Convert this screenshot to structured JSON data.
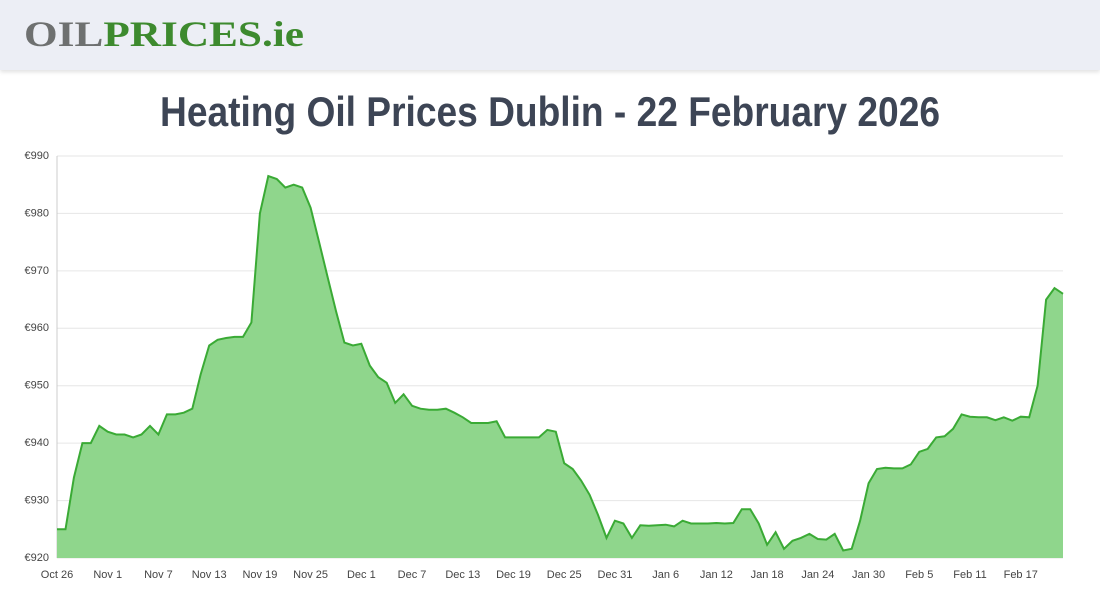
{
  "header": {
    "logo": {
      "part1": "OIL",
      "part2": "PRICES.ie"
    }
  },
  "chart_data": {
    "type": "area",
    "title": "Heating Oil Prices Dublin - 22 February 2026",
    "categories": [
      "Oct 26",
      null,
      null,
      null,
      null,
      null,
      "Nov 1",
      null,
      null,
      null,
      null,
      null,
      "Nov 7",
      null,
      null,
      null,
      null,
      null,
      "Nov 13",
      null,
      null,
      null,
      null,
      null,
      "Nov 19",
      null,
      null,
      null,
      null,
      null,
      "Nov 25",
      null,
      null,
      null,
      null,
      null,
      "Dec 1",
      null,
      null,
      null,
      null,
      null,
      "Dec 7",
      null,
      null,
      null,
      null,
      null,
      "Dec 13",
      null,
      null,
      null,
      null,
      null,
      "Dec 19",
      null,
      null,
      null,
      null,
      null,
      "Dec 25",
      null,
      null,
      null,
      null,
      null,
      "Dec 31",
      null,
      null,
      null,
      null,
      null,
      "Jan 6",
      null,
      null,
      null,
      null,
      null,
      "Jan 12",
      null,
      null,
      null,
      null,
      null,
      "Jan 18",
      null,
      null,
      null,
      null,
      null,
      "Jan 24",
      null,
      null,
      null,
      null,
      null,
      "Jan 30",
      null,
      null,
      null,
      null,
      null,
      "Feb 5",
      null,
      null,
      null,
      null,
      null,
      "Feb 11",
      null,
      null,
      null,
      null,
      null,
      "Feb 17",
      null,
      null,
      null,
      null,
      null
    ],
    "values": [
      925,
      925,
      934,
      940,
      940,
      943,
      942,
      941.5,
      941.5,
      941,
      941.5,
      943,
      941.5,
      945,
      945,
      945.3,
      946,
      952,
      957,
      958,
      958.3,
      958.5,
      958.5,
      961,
      980,
      986.5,
      986,
      984.5,
      985,
      984.5,
      981,
      975,
      969,
      963,
      957.5,
      957,
      957.3,
      953.5,
      951.5,
      950.5,
      947,
      948.5,
      946.5,
      946,
      945.8,
      945.8,
      946,
      945.3,
      944.5,
      943.5,
      943.5,
      943.5,
      943.8,
      941,
      941,
      941,
      941,
      941,
      942.3,
      942,
      936.5,
      935.5,
      933.5,
      931,
      927.5,
      923.5,
      926.5,
      926,
      923.5,
      925.7,
      925.6,
      925.7,
      925.8,
      925.5,
      926.5,
      926,
      926,
      926,
      926.1,
      926,
      926.1,
      928.5,
      928.5,
      926,
      922.3,
      924.5,
      921.6,
      923,
      923.5,
      924.2,
      923.3,
      923.2,
      924.2,
      921.3,
      921.6,
      926.5,
      933,
      935.5,
      935.7,
      935.6,
      935.6,
      936.3,
      938.5,
      939,
      941,
      941.2,
      942.5,
      945,
      944.6,
      944.5,
      944.5,
      944,
      944.5,
      943.9,
      944.6,
      944.5,
      950,
      965,
      967,
      966
    ],
    "color": "#3aaa35",
    "fill": "#8fd68c",
    "ylim": [
      920,
      990
    ],
    "yticks": [
      {
        "value": 920,
        "label": "€920"
      },
      {
        "value": 930,
        "label": "€930"
      },
      {
        "value": 940,
        "label": "€940"
      },
      {
        "value": 950,
        "label": "€950"
      },
      {
        "value": 960,
        "label": "€960"
      },
      {
        "value": 970,
        "label": "€970"
      },
      {
        "value": 980,
        "label": "€980"
      },
      {
        "value": 990,
        "label": "€990"
      }
    ],
    "grid": true
  }
}
